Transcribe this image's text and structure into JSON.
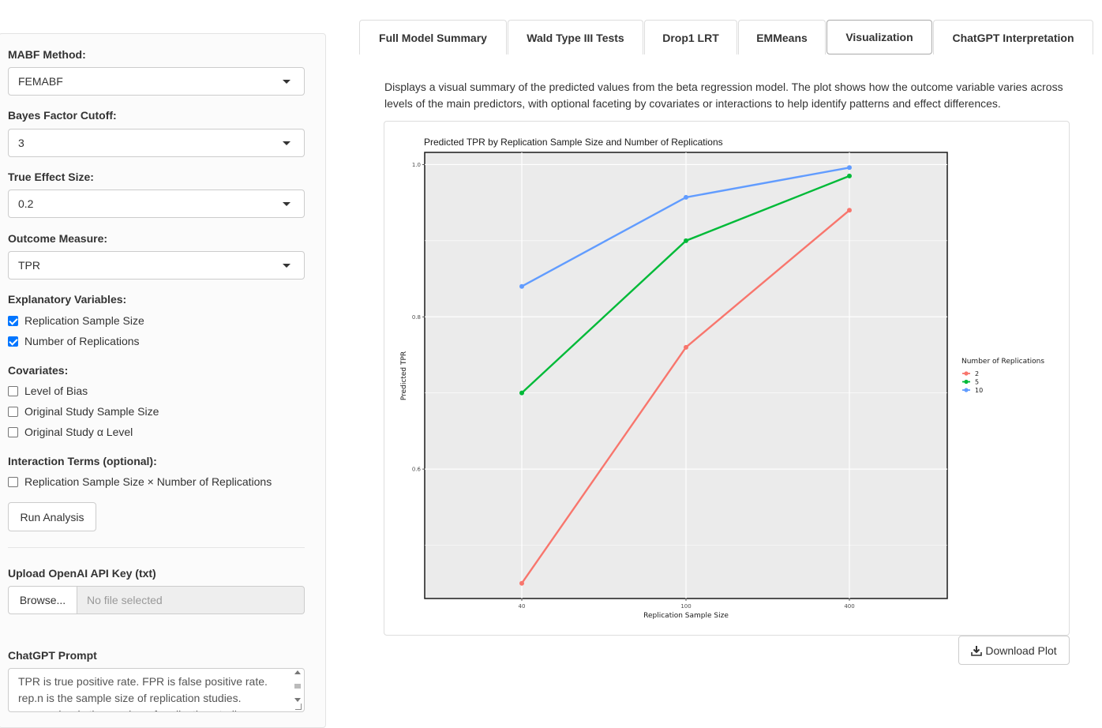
{
  "tabs": [
    {
      "label": "Full Model Summary"
    },
    {
      "label": "Wald Type III Tests"
    },
    {
      "label": "Drop1 LRT"
    },
    {
      "label": "EMMeans"
    },
    {
      "label": "Visualization"
    },
    {
      "label": "ChatGPT Interpretation"
    }
  ],
  "active_tab": "Visualization",
  "sidebar": {
    "mabf_method": {
      "label": "MABF Method:",
      "value": "FEMABF"
    },
    "bf_cutoff": {
      "label": "Bayes Factor Cutoff:",
      "value": "3"
    },
    "true_effect": {
      "label": "True Effect Size:",
      "value": "0.2"
    },
    "outcome": {
      "label": "Outcome Measure:",
      "value": "TPR"
    },
    "explanatory": {
      "label": "Explanatory Variables:",
      "items": [
        {
          "label": "Replication Sample Size",
          "checked": true
        },
        {
          "label": "Number of Replications",
          "checked": true
        }
      ]
    },
    "covariates": {
      "label": "Covariates:",
      "items": [
        {
          "label": "Level of Bias",
          "checked": false
        },
        {
          "label": "Original Study Sample Size",
          "checked": false
        },
        {
          "label": "Original Study α Level",
          "checked": false
        }
      ]
    },
    "interactions": {
      "label": "Interaction Terms (optional):",
      "items": [
        {
          "label": "Replication Sample Size × Number of Replications",
          "checked": false
        }
      ]
    },
    "run_button": "Run Analysis",
    "upload": {
      "label": "Upload OpenAI API Key (txt)",
      "browse": "Browse...",
      "placeholder": "No file selected"
    },
    "prompt": {
      "label": "ChatGPT Prompt",
      "text": "TPR is true positive rate. FPR is false positive rate. rep.n is the sample size of replication studies. rep.number is the number of replication studies."
    }
  },
  "main": {
    "description": "Displays a visual summary of the predicted values from the beta regression model. The plot shows how the outcome variable varies across levels of the main predictors, with optional faceting by covariates or interactions to help identify patterns and effect differences.",
    "download_label": "Download Plot"
  },
  "chart_data": {
    "type": "line",
    "title": "Predicted TPR by Replication Sample Size and Number of Replications",
    "xlabel": "Replication Sample Size",
    "ylabel": "Predicted TPR",
    "categories": [
      "40",
      "100",
      "400"
    ],
    "y_ticks": [
      "0.6",
      "0.8",
      "1.0"
    ],
    "ylim": [
      0.43,
      1.016
    ],
    "grid": true,
    "legend": {
      "title": "Number of Replications",
      "position": "right"
    },
    "series": [
      {
        "name": "2",
        "color": "#F8766D",
        "values": [
          0.45,
          0.76,
          0.94
        ]
      },
      {
        "name": "5",
        "color": "#00BA38",
        "values": [
          0.7,
          0.9,
          0.985
        ]
      },
      {
        "name": "10",
        "color": "#619CFF",
        "values": [
          0.84,
          0.957,
          0.996
        ]
      }
    ]
  }
}
